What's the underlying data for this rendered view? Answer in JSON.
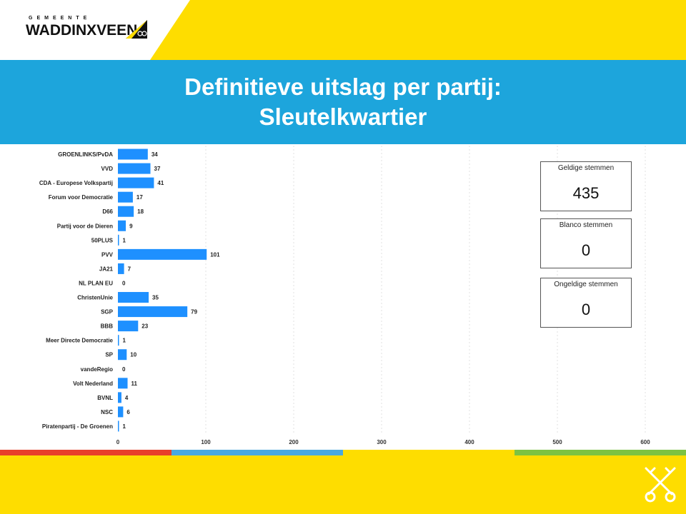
{
  "header": {
    "logo_small": "GEMEENTE",
    "logo_main": "WADDINXVEEN",
    "title_line1": "Definitieve uitslag per partij:",
    "title_line2": "Sleutelkwartier"
  },
  "colors": {
    "yellow": "#fedd00",
    "blue_band": "#1da5dc",
    "bar": "#1e90ff",
    "stripe_red": "#e8402a",
    "stripe_blue": "#4aa8e0",
    "stripe_yellow": "#fedd00",
    "stripe_green": "#7dc242"
  },
  "stats": [
    {
      "label": "Geldige stemmen",
      "value": "435"
    },
    {
      "label": "Blanco stemmen",
      "value": "0"
    },
    {
      "label": "Ongeldige stemmen",
      "value": "0"
    }
  ],
  "chart_data": {
    "type": "bar",
    "orientation": "horizontal",
    "categories": [
      "GROENLINKS/PvDA",
      "VVD",
      "CDA - Europese Volkspartij",
      "Forum voor Democratie",
      "D66",
      "Partij voor de Dieren",
      "50PLUS",
      "PVV",
      "JA21",
      "NL PLAN EU",
      "ChristenUnie",
      "SGP",
      "BBB",
      "Meer Directe Democratie",
      "SP",
      "vandeRegio",
      "Volt Nederland",
      "BVNL",
      "NSC",
      "Piratenpartij - De Groenen"
    ],
    "values": [
      34,
      37,
      41,
      17,
      18,
      9,
      1,
      101,
      7,
      0,
      35,
      79,
      23,
      1,
      10,
      0,
      11,
      4,
      6,
      1
    ],
    "xlim": [
      0,
      600
    ],
    "xticks": [
      0,
      100,
      200,
      300,
      400,
      500,
      600
    ],
    "grid": true,
    "data_labels": true
  }
}
